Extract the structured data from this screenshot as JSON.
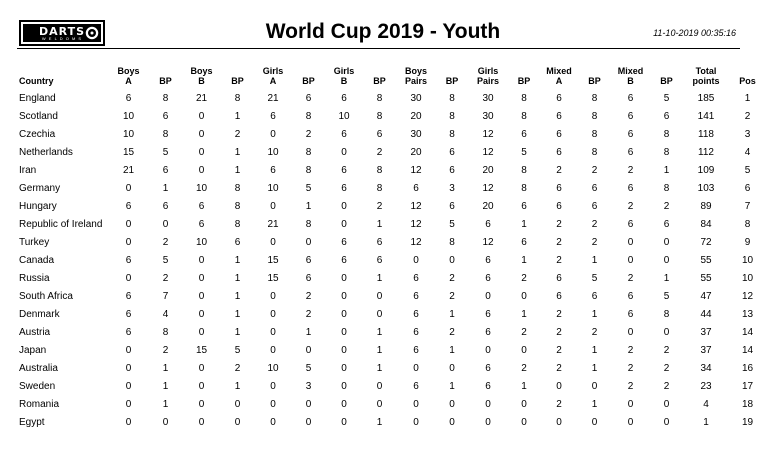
{
  "header": {
    "logo_text": "DARTS",
    "logo_subtext": "W E L D O M S",
    "title": "World Cup 2019 - Youth",
    "timestamp": "11-10-2019 00:35:16"
  },
  "table": {
    "columns": [
      {
        "line1": "Country",
        "line2": ""
      },
      {
        "line1": "Boys",
        "line2": "A"
      },
      {
        "line1": "BP",
        "line2": ""
      },
      {
        "line1": "Boys",
        "line2": "B"
      },
      {
        "line1": "BP",
        "line2": ""
      },
      {
        "line1": "Girls",
        "line2": "A"
      },
      {
        "line1": "BP",
        "line2": ""
      },
      {
        "line1": "Girls",
        "line2": "B"
      },
      {
        "line1": "BP",
        "line2": ""
      },
      {
        "line1": "Boys",
        "line2": "Pairs"
      },
      {
        "line1": "BP",
        "line2": ""
      },
      {
        "line1": "Girls",
        "line2": "Pairs"
      },
      {
        "line1": "BP",
        "line2": ""
      },
      {
        "line1": "Mixed",
        "line2": "A"
      },
      {
        "line1": "BP",
        "line2": ""
      },
      {
        "line1": "Mixed",
        "line2": "B"
      },
      {
        "line1": "BP",
        "line2": ""
      },
      {
        "line1": "Total",
        "line2": "points"
      },
      {
        "line1": "Pos",
        "line2": ""
      }
    ],
    "rows": [
      [
        "England",
        "6",
        "8",
        "21",
        "8",
        "21",
        "6",
        "6",
        "8",
        "30",
        "8",
        "30",
        "8",
        "6",
        "8",
        "6",
        "5",
        "185",
        "1"
      ],
      [
        "Scotland",
        "10",
        "6",
        "0",
        "1",
        "6",
        "8",
        "10",
        "8",
        "20",
        "8",
        "30",
        "8",
        "6",
        "8",
        "6",
        "6",
        "141",
        "2"
      ],
      [
        "Czechia",
        "10",
        "8",
        "0",
        "2",
        "0",
        "2",
        "6",
        "6",
        "30",
        "8",
        "12",
        "6",
        "6",
        "8",
        "6",
        "8",
        "118",
        "3"
      ],
      [
        "Netherlands",
        "15",
        "5",
        "0",
        "1",
        "10",
        "8",
        "0",
        "2",
        "20",
        "6",
        "12",
        "5",
        "6",
        "8",
        "6",
        "8",
        "112",
        "4"
      ],
      [
        "Iran",
        "21",
        "6",
        "0",
        "1",
        "6",
        "8",
        "6",
        "8",
        "12",
        "6",
        "20",
        "8",
        "2",
        "2",
        "2",
        "1",
        "109",
        "5"
      ],
      [
        "Germany",
        "0",
        "1",
        "10",
        "8",
        "10",
        "5",
        "6",
        "8",
        "6",
        "3",
        "12",
        "8",
        "6",
        "6",
        "6",
        "8",
        "103",
        "6"
      ],
      [
        "Hungary",
        "6",
        "6",
        "6",
        "8",
        "0",
        "1",
        "0",
        "2",
        "12",
        "6",
        "20",
        "6",
        "6",
        "6",
        "2",
        "2",
        "89",
        "7"
      ],
      [
        "Republic of Ireland",
        "0",
        "0",
        "6",
        "8",
        "21",
        "8",
        "0",
        "1",
        "12",
        "5",
        "6",
        "1",
        "2",
        "2",
        "6",
        "6",
        "84",
        "8"
      ],
      [
        "Turkey",
        "0",
        "2",
        "10",
        "6",
        "0",
        "0",
        "6",
        "6",
        "12",
        "8",
        "12",
        "6",
        "2",
        "2",
        "0",
        "0",
        "72",
        "9"
      ],
      [
        "Canada",
        "6",
        "5",
        "0",
        "1",
        "15",
        "6",
        "6",
        "6",
        "0",
        "0",
        "6",
        "1",
        "2",
        "1",
        "0",
        "0",
        "55",
        "10"
      ],
      [
        "Russia",
        "0",
        "2",
        "0",
        "1",
        "15",
        "6",
        "0",
        "1",
        "6",
        "2",
        "6",
        "2",
        "6",
        "5",
        "2",
        "1",
        "55",
        "10"
      ],
      [
        "South Africa",
        "6",
        "7",
        "0",
        "1",
        "0",
        "2",
        "0",
        "0",
        "6",
        "2",
        "0",
        "0",
        "6",
        "6",
        "6",
        "5",
        "47",
        "12"
      ],
      [
        "Denmark",
        "6",
        "4",
        "0",
        "1",
        "0",
        "2",
        "0",
        "0",
        "6",
        "1",
        "6",
        "1",
        "2",
        "1",
        "6",
        "8",
        "44",
        "13"
      ],
      [
        "Austria",
        "6",
        "8",
        "0",
        "1",
        "0",
        "1",
        "0",
        "1",
        "6",
        "2",
        "6",
        "2",
        "2",
        "2",
        "0",
        "0",
        "37",
        "14"
      ],
      [
        "Japan",
        "0",
        "2",
        "15",
        "5",
        "0",
        "0",
        "0",
        "1",
        "6",
        "1",
        "0",
        "0",
        "2",
        "1",
        "2",
        "2",
        "37",
        "14"
      ],
      [
        "Australia",
        "0",
        "1",
        "0",
        "2",
        "10",
        "5",
        "0",
        "1",
        "0",
        "0",
        "6",
        "2",
        "2",
        "1",
        "2",
        "2",
        "34",
        "16"
      ],
      [
        "Sweden",
        "0",
        "1",
        "0",
        "1",
        "0",
        "3",
        "0",
        "0",
        "6",
        "1",
        "6",
        "1",
        "0",
        "0",
        "2",
        "2",
        "23",
        "17"
      ],
      [
        "Romania",
        "0",
        "1",
        "0",
        "0",
        "0",
        "0",
        "0",
        "0",
        "0",
        "0",
        "0",
        "0",
        "2",
        "1",
        "0",
        "0",
        "4",
        "18"
      ],
      [
        "Egypt",
        "0",
        "0",
        "0",
        "0",
        "0",
        "0",
        "0",
        "1",
        "0",
        "0",
        "0",
        "0",
        "0",
        "0",
        "0",
        "0",
        "1",
        "19"
      ]
    ]
  }
}
